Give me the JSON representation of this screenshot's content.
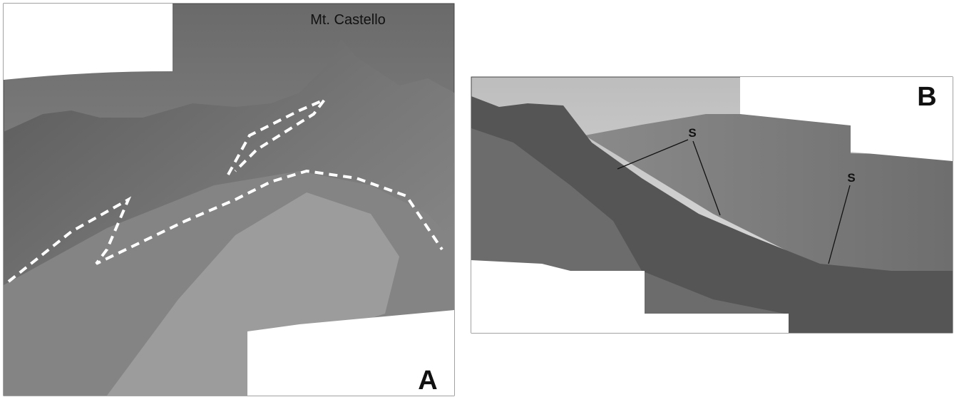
{
  "panel_a": {
    "peak_label": "Mt. Castello",
    "panel_label": "A"
  },
  "panel_b": {
    "panel_label": "B",
    "annotations": [
      "S",
      "S"
    ]
  }
}
